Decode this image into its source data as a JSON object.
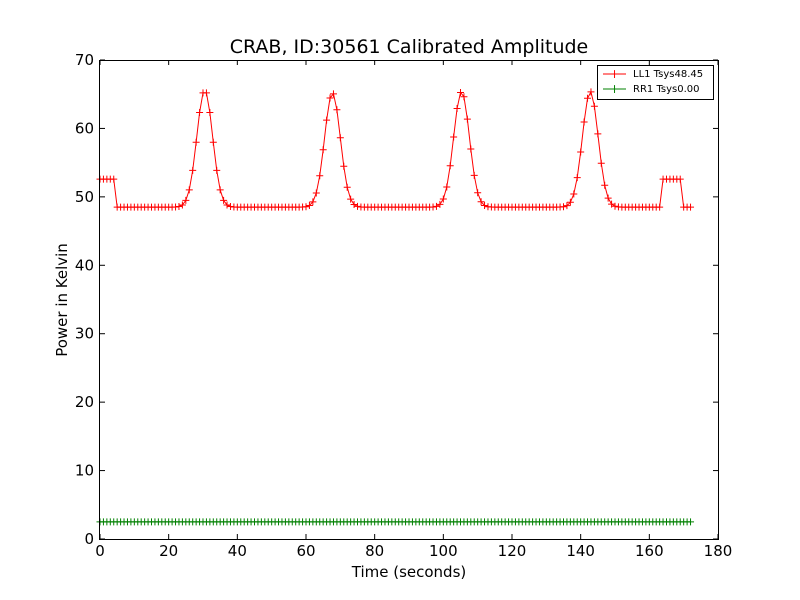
{
  "chart_data": {
    "type": "line",
    "title": "CRAB, ID:30561 Calibrated Amplitude",
    "xlabel": "Time (seconds)",
    "ylabel": "Power in Kelvin",
    "xlim": [
      0,
      180
    ],
    "ylim": [
      0,
      70
    ],
    "xticks": [
      0,
      20,
      40,
      60,
      80,
      100,
      120,
      140,
      160,
      180
    ],
    "yticks": [
      0,
      10,
      20,
      30,
      40,
      50,
      60,
      70
    ],
    "grid": false,
    "legend_position": "top-right",
    "marker": "+",
    "sample_step": 1,
    "x_start": 0,
    "x_end": 172,
    "series": [
      {
        "name": "LL1 Tsys48.45",
        "color": "#ff0000",
        "baseline": 48.5,
        "step_segments": [
          {
            "from": 0,
            "to": 4.5,
            "value": 52.6
          },
          {
            "from": 164,
            "to": 169,
            "value": 52.6
          }
        ],
        "peaks": [
          {
            "center": 30.5,
            "height": 65.6,
            "width": 2.3
          },
          {
            "center": 67.7,
            "height": 65.2,
            "width": 2.3
          },
          {
            "center": 105.3,
            "height": 65.4,
            "width": 2.3
          },
          {
            "center": 142.8,
            "height": 65.4,
            "width": 2.3
          }
        ]
      },
      {
        "name": "RR1 Tsys0.00",
        "color": "#008000",
        "baseline": 2.5,
        "step_segments": [],
        "peaks": []
      }
    ]
  }
}
